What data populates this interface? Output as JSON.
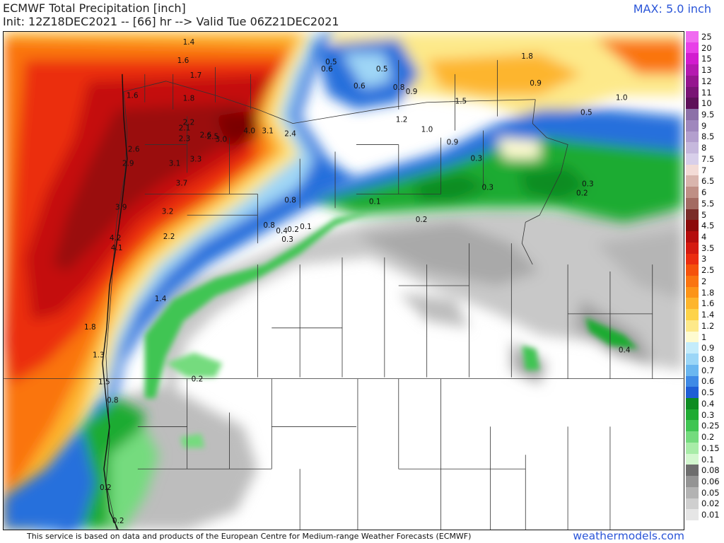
{
  "header": {
    "title": "ECMWF Total Precipitation [inch]",
    "subtitle": "Init: 12Z18DEC2021 -- [66] hr --> Valid Tue 06Z21DEC2021",
    "max_label": "MAX: 5.0 inch"
  },
  "legend": {
    "items": [
      {
        "label": "25",
        "color": "#f06bf0"
      },
      {
        "label": "20",
        "color": "#e83fe8"
      },
      {
        "label": "15",
        "color": "#d21ccf"
      },
      {
        "label": "13",
        "color": "#b51ab0"
      },
      {
        "label": "12",
        "color": "#96168f"
      },
      {
        "label": "11",
        "color": "#7a1475"
      },
      {
        "label": "10",
        "color": "#5e1059"
      },
      {
        "label": "9.5",
        "color": "#8c70a8"
      },
      {
        "label": "9",
        "color": "#9f87bd"
      },
      {
        "label": "8.5",
        "color": "#b39fce"
      },
      {
        "label": "8",
        "color": "#c6b8dd"
      },
      {
        "label": "7.5",
        "color": "#d8cfea"
      },
      {
        "label": "7",
        "color": "#f3dbd6"
      },
      {
        "label": "6.5",
        "color": "#d9b5ad"
      },
      {
        "label": "6",
        "color": "#bf8f85"
      },
      {
        "label": "5.5",
        "color": "#a36b62"
      },
      {
        "label": "5",
        "color": "#7a2c28"
      },
      {
        "label": "4.5",
        "color": "#8c0a0a"
      },
      {
        "label": "4",
        "color": "#b50d0d"
      },
      {
        "label": "3.5",
        "color": "#d41a10"
      },
      {
        "label": "3",
        "color": "#eb2d10"
      },
      {
        "label": "2.5",
        "color": "#f5520c"
      },
      {
        "label": "2",
        "color": "#fa7410"
      },
      {
        "label": "1.8",
        "color": "#fc9418"
      },
      {
        "label": "1.6",
        "color": "#fdb52d"
      },
      {
        "label": "1.4",
        "color": "#fdd34a"
      },
      {
        "label": "1.2",
        "color": "#fde98a"
      },
      {
        "label": "1",
        "color": "#fefbd0"
      },
      {
        "label": "0.9",
        "color": "#c4ecfb"
      },
      {
        "label": "0.8",
        "color": "#9bd6f7"
      },
      {
        "label": "0.7",
        "color": "#6bb7f0"
      },
      {
        "label": "0.6",
        "color": "#3f8ae6"
      },
      {
        "label": "0.5",
        "color": "#1f5ed6"
      },
      {
        "label": "0.4",
        "color": "#0d8c22"
      },
      {
        "label": "0.3",
        "color": "#1fab33"
      },
      {
        "label": "0.25",
        "color": "#3fc552"
      },
      {
        "label": "0.2",
        "color": "#74db7e"
      },
      {
        "label": "0.15",
        "color": "#a8eca8"
      },
      {
        "label": "0.1",
        "color": "#d3f7cf"
      },
      {
        "label": "0.08",
        "color": "#6e6e6e"
      },
      {
        "label": "0.06",
        "color": "#949494"
      },
      {
        "label": "0.05",
        "color": "#b3b3b3"
      },
      {
        "label": "0.02",
        "color": "#cfcfcf"
      },
      {
        "label": "0.01",
        "color": "#e6e6e6"
      }
    ]
  },
  "map_labels": [
    "1.4",
    "1.6",
    "1.7",
    "1.8",
    "1.6",
    "2.2",
    "2.1",
    "2.3",
    "2.6",
    "2.5",
    "3.0",
    "4.0",
    "3.1",
    "2.4",
    "2.6",
    "2.9",
    "3.1",
    "3.3",
    "3.7",
    "3.9",
    "3.2",
    "2.2",
    "4.2",
    "4.1",
    "0.8",
    "0.8",
    "0.4",
    "0.2",
    "0.1",
    "0.3",
    "1.4",
    "1.8",
    "1.3",
    "1.5",
    "0.8",
    "0.2",
    "0.2",
    "0.2",
    "0.5",
    "0.6",
    "0.5",
    "0.6",
    "0.8",
    "0.9",
    "1.8",
    "1.5",
    "0.9",
    "1.0",
    "0.5",
    "1.2",
    "1.0",
    "0.9",
    "0.3",
    "0.3",
    "0.3",
    "0.2",
    "0.1",
    "0.2",
    "0.4"
  ],
  "footer": {
    "attribution": "This service is based on data and products of the European Centre for Medium-range Weather Forecasts (ECMWF)",
    "brand": "weathermodels.com"
  }
}
